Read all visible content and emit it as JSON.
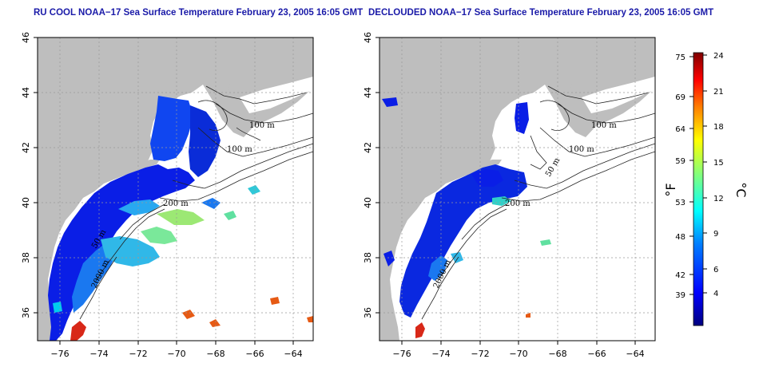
{
  "panels": [
    {
      "title": "RU COOL NOAA−17 Sea Surface Temperature February 23, 2005 16:05 GMT",
      "contour_labels": [
        "100 m",
        "100 m",
        "200 m",
        "50 m",
        "2000 m"
      ]
    },
    {
      "title": "DECLOUDED NOAA−17 Sea Surface Temperature February 23, 2005 16:05 GMT",
      "contour_labels": [
        "100 m",
        "100 m",
        "50 m",
        "200 m",
        "2000 m"
      ]
    }
  ],
  "axes": {
    "lon_ticks": [
      "−76",
      "−74",
      "−72",
      "−70",
      "−68",
      "−66",
      "−64"
    ],
    "lat_ticks": [
      "36",
      "38",
      "40",
      "42",
      "44",
      "46"
    ]
  },
  "colorbar": {
    "fahrenheit_unit": "°F",
    "celsius_unit": "°C",
    "fahrenheit_ticks": [
      "75",
      "69",
      "64",
      "59",
      "53",
      "48",
      "42",
      "39"
    ],
    "celsius_ticks": [
      "24",
      "21",
      "18",
      "15",
      "12",
      "9",
      "6",
      "4"
    ],
    "colors": [
      "#00007f",
      "#0000ff",
      "#007fff",
      "#00ffff",
      "#7fff7f",
      "#ffff00",
      "#ff7f00",
      "#ff0000",
      "#7f0000"
    ]
  },
  "colors": {
    "land": "#bebebe",
    "title": "#1a1aa8"
  }
}
